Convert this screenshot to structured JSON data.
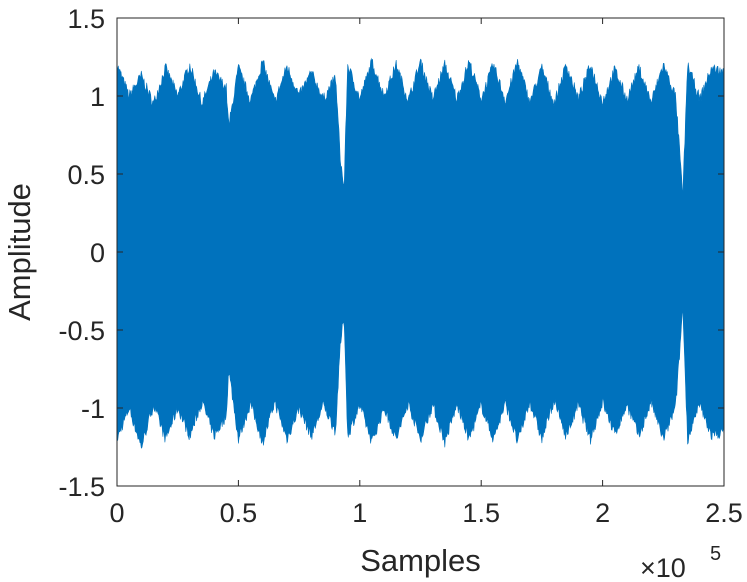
{
  "chart_data": {
    "type": "area",
    "title": "",
    "xlabel": "Samples",
    "ylabel": "Amplitude",
    "x_multiplier_base": "×10",
    "x_multiplier_exponent": "5",
    "xlim": [
      0,
      2.5
    ],
    "ylim": [
      -1.5,
      1.5
    ],
    "x_ticks": [
      0,
      0.5,
      1,
      1.5,
      2,
      2.5
    ],
    "x_tick_labels": [
      "0",
      "0.5",
      "1",
      "1.5",
      "2",
      "2.5"
    ],
    "y_ticks": [
      1.5,
      1,
      0.5,
      0,
      -0.5,
      -1,
      -1.5
    ],
    "y_tick_labels": [
      "1.5",
      "1",
      "0.5",
      "0",
      "-0.5",
      "-1",
      "-1.5"
    ],
    "grid": false,
    "series_color": "#0072BD",
    "envelope": {
      "x": [
        0,
        0.05,
        0.1,
        0.15,
        0.2,
        0.25,
        0.3,
        0.35,
        0.4,
        0.45,
        0.46,
        0.5,
        0.55,
        0.6,
        0.65,
        0.7,
        0.75,
        0.8,
        0.85,
        0.9,
        0.92,
        0.935,
        0.95,
        1.0,
        1.05,
        1.1,
        1.15,
        1.2,
        1.25,
        1.3,
        1.35,
        1.4,
        1.45,
        1.5,
        1.55,
        1.6,
        1.65,
        1.7,
        1.75,
        1.8,
        1.85,
        1.9,
        1.95,
        2.0,
        2.05,
        2.1,
        2.15,
        2.2,
        2.25,
        2.3,
        2.315,
        2.33,
        2.35,
        2.4,
        2.45,
        2.5
      ],
      "upper": [
        1.2,
        1.0,
        1.13,
        0.95,
        1.18,
        1.0,
        1.2,
        0.95,
        1.15,
        1.05,
        0.8,
        1.18,
        0.97,
        1.22,
        0.96,
        1.19,
        1.0,
        1.15,
        0.98,
        1.12,
        0.6,
        0.4,
        1.2,
        0.98,
        1.22,
        1.0,
        1.2,
        0.97,
        1.22,
        0.98,
        1.2,
        0.98,
        1.22,
        0.98,
        1.2,
        0.97,
        1.22,
        0.96,
        1.18,
        0.95,
        1.2,
        0.98,
        1.2,
        0.96,
        1.17,
        0.98,
        1.18,
        0.96,
        1.2,
        1.0,
        0.7,
        0.35,
        1.2,
        0.98,
        1.18,
        1.15
      ],
      "lower": [
        -1.2,
        -1.0,
        -1.25,
        -0.98,
        -1.2,
        -1.0,
        -1.18,
        -0.96,
        -1.18,
        -1.05,
        -0.75,
        -1.2,
        -0.97,
        -1.22,
        -0.96,
        -1.2,
        -1.0,
        -1.18,
        -0.98,
        -1.15,
        -0.6,
        -0.4,
        -1.18,
        -0.98,
        -1.22,
        -1.0,
        -1.2,
        -0.97,
        -1.2,
        -0.98,
        -1.22,
        -0.98,
        -1.2,
        -0.98,
        -1.2,
        -0.97,
        -1.22,
        -0.96,
        -1.2,
        -0.95,
        -1.18,
        -0.98,
        -1.2,
        -0.96,
        -1.17,
        -0.98,
        -1.18,
        -0.96,
        -1.2,
        -1.0,
        -0.7,
        -0.35,
        -1.2,
        -0.98,
        -1.18,
        -1.15
      ]
    }
  }
}
